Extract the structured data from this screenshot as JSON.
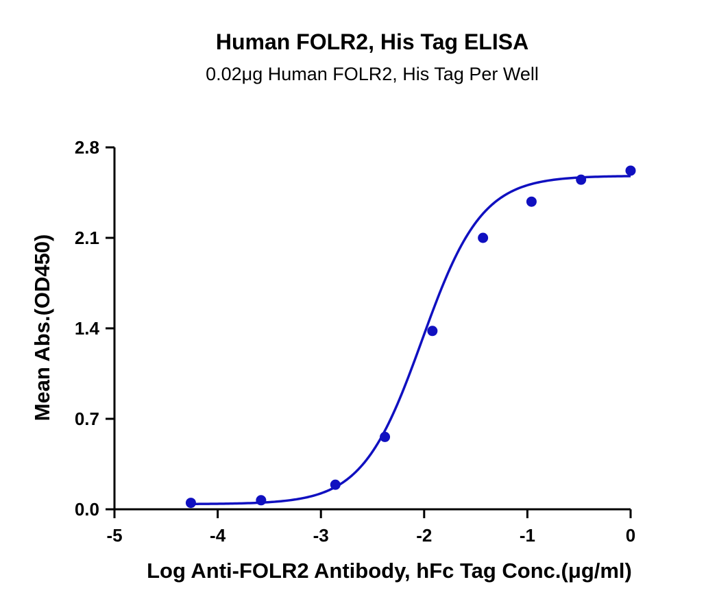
{
  "chart_data": {
    "type": "scatter",
    "title": "Human FOLR2, His Tag ELISA",
    "subtitle": "0.02μg Human FOLR2, His Tag Per Well",
    "xlabel": "Log Anti-FOLR2 Antibody, hFc Tag Conc.(μg/ml)",
    "ylabel": "Mean Abs.(OD450)",
    "xlim": [
      -5,
      0
    ],
    "ylim": [
      0,
      2.8
    ],
    "x_ticks": [
      -5,
      -4,
      -3,
      -2,
      -1,
      0
    ],
    "x_tick_labels": [
      "-5",
      "-4",
      "-3",
      "-2",
      "-1",
      "0"
    ],
    "y_ticks": [
      0,
      0.7,
      1.4,
      2.1,
      2.8
    ],
    "y_tick_labels": [
      "0.0",
      "0.7",
      "1.4",
      "2.1",
      "2.8"
    ],
    "grid": false,
    "series": [
      {
        "color": "#1010c0",
        "x": [
          -4.26,
          -3.58,
          -2.86,
          -2.38,
          -1.92,
          -1.43,
          -0.96,
          -0.48,
          0.0
        ],
        "y": [
          0.05,
          0.07,
          0.19,
          0.56,
          1.38,
          2.1,
          2.38,
          2.55,
          2.62
        ]
      }
    ],
    "fit_curve": {
      "type": "4PL",
      "color": "#1010c0",
      "bottom": 0.04,
      "top": 2.58,
      "log_ec50": -2.02,
      "hill_slope": 1.5
    }
  }
}
